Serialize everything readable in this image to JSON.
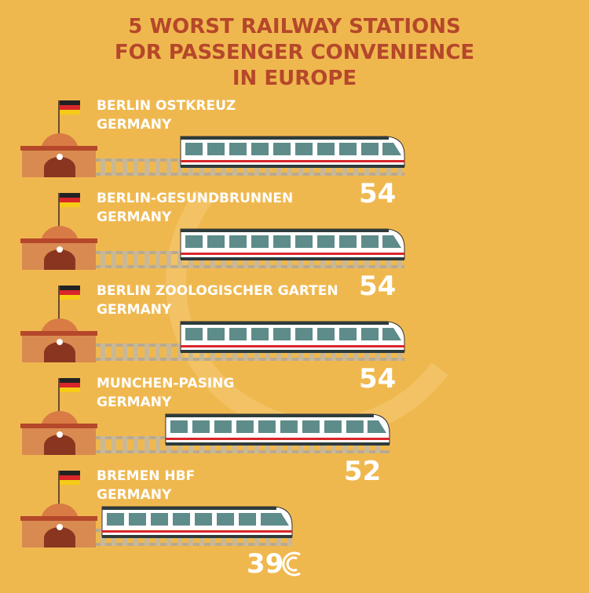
{
  "chart_data": {
    "type": "bar",
    "title_lines": [
      "5 WORST RAILWAY STATIONS",
      "FOR PASSENGER CONVENIENCE",
      "IN EUROPE"
    ],
    "categories": [
      "BERLIN OSTKREUZ",
      "BERLIN-GESUNDBRUNNEN",
      "BERLIN ZOOLOGISCHER GARTEN",
      "MUNCHEN-PASING",
      "BREMEN HBF"
    ],
    "countries": [
      "GERMANY",
      "GERMANY",
      "GERMANY",
      "GERMANY",
      "GERMANY"
    ],
    "values": [
      54,
      54,
      54,
      52,
      39
    ],
    "color": "#ffffff",
    "xlim": [
      0,
      54
    ]
  }
}
